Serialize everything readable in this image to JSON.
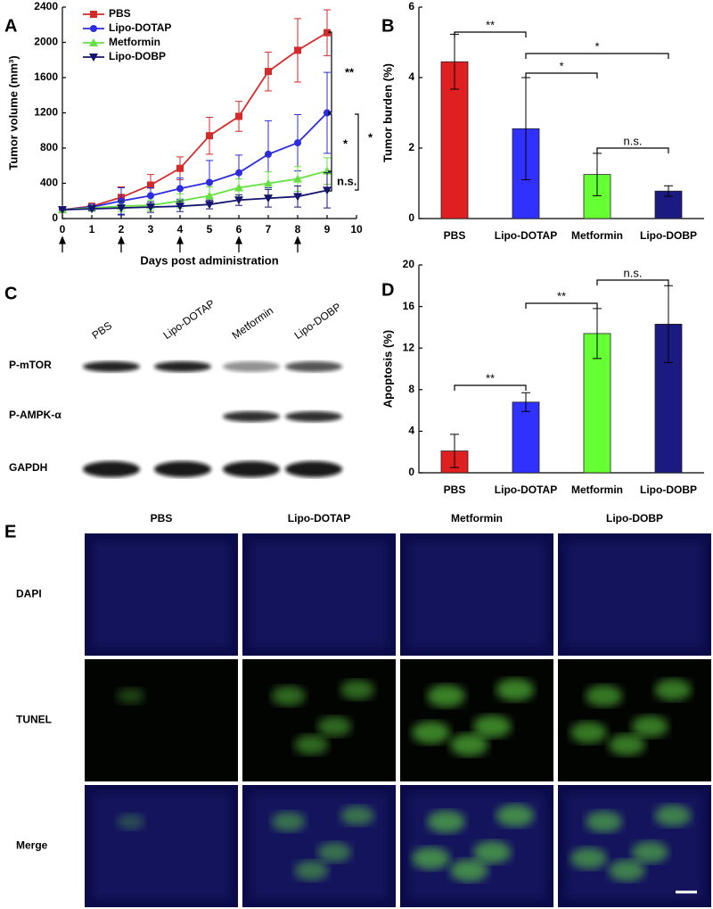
{
  "chart_data": [
    {
      "type": "line",
      "panel": "A",
      "xlabel": "Days post administration",
      "ylabel": "Tumor volume (mm³)",
      "x": [
        0,
        1,
        2,
        3,
        4,
        5,
        6,
        7,
        8,
        9
      ],
      "xlim": [
        0,
        10
      ],
      "xticks": [
        0,
        1,
        2,
        3,
        4,
        5,
        6,
        7,
        8,
        9,
        10
      ],
      "ylim": [
        0,
        2400
      ],
      "yticks": [
        0,
        400,
        800,
        1200,
        1600,
        2000,
        2400
      ],
      "dose_days": [
        0,
        2,
        4,
        6,
        8
      ],
      "legend": "upper left",
      "series": [
        {
          "name": "PBS",
          "color": "#d42a2a",
          "marker": "square",
          "values": [
            100,
            140,
            240,
            380,
            570,
            940,
            1160,
            1670,
            1910,
            2110
          ],
          "errors": [
            0,
            30,
            120,
            120,
            130,
            210,
            170,
            220,
            360,
            260
          ]
        },
        {
          "name": "Lipo-DOTAP",
          "color": "#2b2be0",
          "marker": "circle",
          "values": [
            100,
            130,
            200,
            260,
            340,
            410,
            520,
            730,
            860,
            1200
          ],
          "errors": [
            0,
            30,
            150,
            90,
            120,
            250,
            200,
            380,
            320,
            460
          ]
        },
        {
          "name": "Metformin",
          "color": "#66e040",
          "marker": "triangle",
          "values": [
            100,
            120,
            140,
            150,
            200,
            260,
            350,
            400,
            450,
            540
          ],
          "errors": [
            0,
            20,
            60,
            60,
            80,
            100,
            100,
            130,
            140,
            150
          ]
        },
        {
          "name": "Lipo-DOBP",
          "color": "#151570",
          "marker": "triangle-down",
          "values": [
            100,
            110,
            120,
            130,
            140,
            160,
            210,
            230,
            250,
            320
          ],
          "errors": [
            0,
            20,
            80,
            60,
            60,
            50,
            60,
            100,
            120,
            200
          ]
        }
      ],
      "annotations": [
        "**",
        "*",
        "*",
        "n.s."
      ]
    },
    {
      "type": "bar",
      "panel": "B",
      "ylabel": "Tumor burden (%)",
      "categories": [
        "PBS",
        "Lipo-DOTAP",
        "Metformin",
        "Lipo-DOBP"
      ],
      "values": [
        4.45,
        2.55,
        1.25,
        0.78
      ],
      "errors": [
        0.78,
        1.45,
        0.6,
        0.15
      ],
      "colors": [
        "#e02020",
        "#3030ff",
        "#66ff33",
        "#1a1a80"
      ],
      "ylim": [
        0,
        6
      ],
      "yticks": [
        0,
        2,
        4,
        6
      ],
      "annotations": [
        "**",
        "*",
        "*",
        "n.s."
      ]
    },
    {
      "type": "bar",
      "panel": "D",
      "ylabel": "Apoptosis (%)",
      "categories": [
        "PBS",
        "Lipo-DOTAP",
        "Metformin",
        "Lipo-DOBP"
      ],
      "values": [
        2.1,
        6.8,
        13.4,
        14.3
      ],
      "errors": [
        1.6,
        0.9,
        2.4,
        3.7
      ],
      "colors": [
        "#e02020",
        "#3030ff",
        "#66ff33",
        "#1a1a80"
      ],
      "ylim": [
        0,
        20
      ],
      "yticks": [
        0,
        4,
        8,
        12,
        16,
        20
      ],
      "annotations": [
        "**",
        "**",
        "n.s."
      ]
    }
  ],
  "blot": {
    "panel": "C",
    "lanes": [
      "PBS",
      "Lipo-DOTAP",
      "Metformin",
      "Lipo-DOBP"
    ],
    "rows": [
      "P-mTOR",
      "P-AMPK-α",
      "GAPDH"
    ]
  },
  "images": {
    "panel": "E",
    "columns": [
      "PBS",
      "Lipo-DOTAP",
      "Metformin",
      "Lipo-DOBP"
    ],
    "rows": [
      "DAPI",
      "TUNEL",
      "Merge"
    ]
  }
}
